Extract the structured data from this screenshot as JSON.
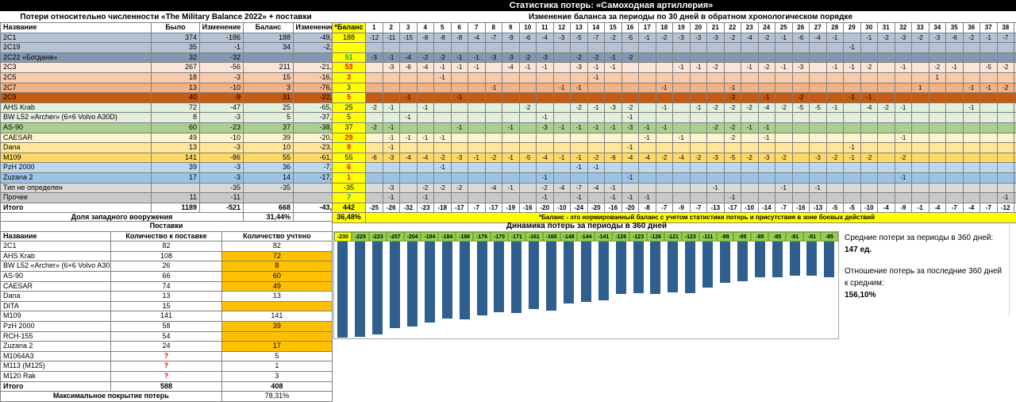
{
  "titles": {
    "main": "Статистика потерь: «Самоходная артиллерия»",
    "left": "Потери относительно численности «The Military Balance 2022» + поставки",
    "right": "Изменение баланса за периоды по 30 дней в обратном хронологическом порядке"
  },
  "colors": {
    "yellow": "#FFFF00",
    "orange_fill": "#FFC000",
    "bar_blue": "#2F5F8F",
    "label_green": "#92D050",
    "pos_green": "#00B050",
    "neg_red": "#FF0000"
  },
  "left_table": {
    "columns": [
      "Название",
      "Было",
      "Изменение",
      "Баланс",
      "Изменение %"
    ],
    "rows": [
      {
        "name": "2С1",
        "was": "374",
        "change": "-186",
        "balance": "188",
        "pct": "-49,7%",
        "color": "#B4C2D6"
      },
      {
        "name": "2С19",
        "was": "35",
        "change": "-1",
        "balance": "34",
        "pct": "-2,9%",
        "color": "#B4C2D6"
      },
      {
        "name": "2С22 «Богдана»",
        "was": "32",
        "change": "-32",
        "balance": "",
        "pct": "",
        "color": "#8497B0"
      },
      {
        "name": "2С3",
        "was": "267",
        "change": "-56",
        "balance": "211",
        "pct": "-21,0%",
        "color": "#FBE5D6"
      },
      {
        "name": "2С5",
        "was": "18",
        "change": "-3",
        "balance": "15",
        "pct": "-16,7%",
        "color": "#F8CBAD"
      },
      {
        "name": "2С7",
        "was": "13",
        "change": "-10",
        "balance": "3",
        "pct": "-76,9%",
        "color": "#F4B183"
      },
      {
        "name": "2С9",
        "was": "40",
        "change": "-9",
        "balance": "31",
        "pct": "-22,5%",
        "color": "#C55A11"
      },
      {
        "name": "AHS Krab",
        "was": "72",
        "change": "-47",
        "balance": "25",
        "pct": "-65,3%",
        "color": "#E2EFDA"
      },
      {
        "name": "BW L52 «Archer» (6×6 Volvo A30D)",
        "was": "8",
        "change": "-3",
        "balance": "5",
        "pct": "-37,5%",
        "color": "#E2EFDA"
      },
      {
        "name": "AS-90",
        "was": "60",
        "change": "-23",
        "balance": "37",
        "pct": "-38,3%",
        "color": "#A9D08E"
      },
      {
        "name": "CAESAR",
        "was": "49",
        "change": "-10",
        "balance": "39",
        "pct": "-20,4%",
        "color": "#FFF2CC"
      },
      {
        "name": "Dana",
        "was": "13",
        "change": "-3",
        "balance": "10",
        "pct": "-23,1%",
        "color": "#FFE699"
      },
      {
        "name": "M109",
        "was": "141",
        "change": "-86",
        "balance": "55",
        "pct": "-61,0%",
        "color": "#FFD966"
      },
      {
        "name": "PzH 2000",
        "was": "39",
        "change": "-3",
        "balance": "36",
        "pct": "-7,7%",
        "color": "#BDD7EE"
      },
      {
        "name": "Zuzana 2",
        "was": "17",
        "change": "-3",
        "balance": "14",
        "pct": "-17,6%",
        "color": "#9DC3E6"
      },
      {
        "name": "Тип не определен",
        "was": "",
        "change": "-35",
        "balance": "-35",
        "pct": "",
        "color": "#D9D9D9"
      },
      {
        "name": "Прочее",
        "was": "11",
        "change": "-11",
        "balance": "",
        "pct": "",
        "color": "#C9C9C9"
      }
    ],
    "total": {
      "name": "Итого",
      "was": "1189",
      "change": "-521",
      "balance": "668",
      "pct": "-43,8%"
    },
    "western_share_label": "Доля западного вооружения",
    "western_share_value": "31,44%"
  },
  "balance_column": {
    "header": "*Баланс",
    "values": [
      {
        "v": "188",
        "c": "k"
      },
      {
        "v": "",
        "c": "k"
      },
      {
        "v": "51",
        "c": "g"
      },
      {
        "v": "53",
        "c": "r"
      },
      {
        "v": "3",
        "c": "r"
      },
      {
        "v": "3",
        "c": "k"
      },
      {
        "v": "5",
        "c": "r"
      },
      {
        "v": "25",
        "c": "k"
      },
      {
        "v": "5",
        "c": "k"
      },
      {
        "v": "37",
        "c": "k"
      },
      {
        "v": "29",
        "c": "r"
      },
      {
        "v": "9",
        "c": "r"
      },
      {
        "v": "55",
        "c": "k"
      },
      {
        "v": "6",
        "c": "r"
      },
      {
        "v": "1",
        "c": "r"
      },
      {
        "v": "-35",
        "c": "k"
      },
      {
        "v": "7",
        "c": "g"
      }
    ],
    "total": "442",
    "total_pct": "36,48%"
  },
  "periods_table": {
    "columns": [
      "1",
      "2",
      "3",
      "4",
      "5",
      "6",
      "7",
      "8",
      "9",
      "10",
      "11",
      "12",
      "13",
      "14",
      "15",
      "16",
      "17",
      "18",
      "19",
      "20",
      "21",
      "22",
      "23",
      "24",
      "25",
      "26",
      "27",
      "28",
      "29",
      "30",
      "31",
      "32",
      "33",
      "34",
      "35",
      "36",
      "37",
      "38",
      "39",
      "40"
    ],
    "rows": [
      [
        "-12",
        "-11",
        "-15",
        "-8",
        "-8",
        "-8",
        "-4",
        "-7",
        "-9",
        "-6",
        "-4",
        "-3",
        "-5",
        "-7",
        "-2",
        "-5",
        "-1",
        "-2",
        "-3",
        "-3",
        "-3",
        "-2",
        "-4",
        "-2",
        "-1",
        "-6",
        "-4",
        "-1",
        "",
        "-1",
        "-2",
        "-3",
        "-2",
        "-3",
        "-6",
        "-2",
        "-1",
        "-7",
        "-9",
        "-4"
      ],
      [
        "",
        "",
        "",
        "",
        "",
        "",
        "",
        "",
        "",
        "",
        "",
        "",
        "",
        "",
        "",
        "",
        "",
        "",
        "",
        "",
        "",
        "",
        "",
        "",
        "",
        "",
        "",
        "",
        "-1",
        "",
        "",
        "",
        "",
        "",
        "",
        "",
        "",
        "",
        "",
        ""
      ],
      [
        "-3",
        "-1",
        "-4",
        "-2",
        "-2",
        "-1",
        "-1",
        "-3",
        "-3",
        "-2",
        "-3",
        "",
        "-2",
        "-2",
        "-1",
        "-2",
        "",
        "",
        "",
        "",
        "",
        "",
        "",
        "",
        "",
        "",
        "",
        "",
        "",
        "",
        "",
        "",
        "",
        "",
        "",
        "",
        "",
        "",
        "",
        ""
      ],
      [
        "",
        "-3",
        "-6",
        "-4",
        "-1",
        "-1",
        "-1",
        "",
        "-4",
        "-1",
        "-1",
        "",
        "-3",
        "-1",
        "-1",
        "",
        "",
        "",
        "-1",
        "-1",
        "-2",
        "",
        "-1",
        "-2",
        "-1",
        "-3",
        "",
        "-1",
        "-1",
        "-2",
        "",
        "-1",
        "",
        "-2",
        "-1",
        "",
        "-5",
        "-2",
        "-2",
        "-1"
      ],
      [
        "",
        "",
        "",
        "",
        "-1",
        "",
        "",
        "",
        "",
        "",
        "",
        "",
        "",
        "-1",
        "",
        "",
        "",
        "",
        "",
        "",
        "",
        "",
        "",
        "",
        "",
        "",
        "",
        "",
        "",
        "",
        "",
        "",
        "",
        "1",
        "",
        "",
        "",
        "",
        "",
        "-2"
      ],
      [
        "",
        "",
        "",
        "",
        "",
        "",
        "",
        "-1",
        "",
        "",
        "",
        "-1",
        "-1",
        "",
        "",
        "",
        "",
        "-1",
        "",
        "",
        "",
        "-1",
        "",
        "",
        "",
        "",
        "",
        "",
        "",
        "",
        "",
        "",
        "1",
        "",
        "",
        "-1",
        "-1",
        "-2",
        "-1",
        "-1"
      ],
      [
        "",
        "",
        "-1",
        "",
        "",
        "-1",
        "",
        "",
        "",
        "",
        "",
        "",
        "",
        "",
        "",
        "",
        "",
        "",
        "",
        "",
        "",
        "-2",
        "",
        "-1",
        "",
        "-2",
        "",
        "",
        "-1",
        "-1",
        "",
        "",
        "",
        "",
        "",
        "",
        "",
        "",
        "",
        ""
      ],
      [
        "-2",
        "-1",
        "",
        "-1",
        "",
        "",
        "",
        "",
        "",
        "-2",
        "",
        "",
        "-2",
        "-1",
        "-3",
        "-2",
        "",
        "-1",
        "",
        "-1",
        "-2",
        "-2",
        "-2",
        "-4",
        "-2",
        "-5",
        "-5",
        "-1",
        "",
        "-4",
        "-2",
        "-1",
        "",
        "",
        "",
        "-1",
        "",
        "",
        "",
        ""
      ],
      [
        "",
        "",
        "-1",
        "",
        "",
        "",
        "",
        "",
        "",
        "",
        "-1",
        "",
        "",
        "",
        "",
        "-1",
        "",
        "",
        "",
        "",
        "",
        "",
        "",
        "",
        "",
        "",
        "",
        "",
        "",
        "",
        "",
        "",
        "",
        "",
        "",
        "",
        "",
        "",
        "",
        ""
      ],
      [
        "-2",
        "-1",
        "",
        "",
        "",
        "-1",
        "",
        "",
        "-1",
        "",
        "-3",
        "-1",
        "-1",
        "-1",
        "-1",
        "-3",
        "-1",
        "-1",
        "",
        "",
        "-2",
        "-2",
        "-1",
        "-1",
        "",
        "",
        "",
        "",
        "",
        "",
        "",
        "",
        "",
        "",
        "",
        "",
        "",
        "",
        "",
        ""
      ],
      [
        "",
        "-1",
        "-1",
        "-1",
        "-1",
        "",
        "",
        "",
        "",
        "",
        "",
        "",
        "",
        "",
        "",
        "",
        "-1",
        "",
        "-1",
        "",
        "",
        "-2",
        "",
        "-1",
        "",
        "",
        "",
        "",
        "",
        "",
        "",
        "-1",
        "",
        "",
        "",
        "",
        "",
        "",
        "",
        ""
      ],
      [
        "",
        "-1",
        "",
        "",
        "",
        "",
        "",
        "",
        "",
        "",
        "",
        "",
        "",
        "",
        "",
        "-1",
        "",
        "",
        "",
        "",
        "",
        "",
        "",
        "",
        "",
        "",
        "",
        "",
        "-1",
        "",
        "",
        "",
        "",
        "",
        "",
        "",
        "",
        "",
        "",
        ""
      ],
      [
        "-6",
        "-3",
        "-4",
        "-4",
        "-2",
        "-3",
        "-1",
        "-2",
        "-1",
        "-5",
        "-4",
        "-1",
        "-1",
        "-2",
        "-6",
        "-4",
        "-4",
        "-2",
        "-4",
        "-2",
        "-3",
        "-5",
        "-2",
        "-3",
        "-2",
        "",
        "-3",
        "-2",
        "-1",
        "-2",
        "",
        "-2",
        "",
        "",
        "",
        "",
        "",
        "",
        "",
        ""
      ],
      [
        "",
        "",
        "",
        "",
        "-1",
        "",
        "",
        "",
        "",
        "",
        "",
        "",
        "-1",
        "-1",
        "",
        "",
        "",
        "",
        "",
        "",
        "",
        "",
        "",
        "",
        "",
        "",
        "",
        "",
        "",
        "",
        "",
        "",
        "",
        "",
        "",
        "",
        "",
        "",
        "",
        ""
      ],
      [
        "",
        "",
        "",
        "",
        "",
        "",
        "",
        "",
        "",
        "",
        "-1",
        "",
        "",
        "",
        "",
        "-1",
        "",
        "",
        "",
        "",
        "",
        "",
        "",
        "",
        "",
        "",
        "",
        "",
        "",
        "",
        "",
        "-1",
        "",
        "",
        "",
        "",
        "",
        "",
        "",
        ""
      ],
      [
        "",
        "-3",
        "",
        "-2",
        "-2",
        "-2",
        "",
        "-4",
        "-1",
        "",
        "-2",
        "-4",
        "-7",
        "-4",
        "-1",
        "",
        "",
        "",
        "",
        "",
        "-1",
        "",
        "",
        "",
        "-1",
        "",
        "-1",
        "",
        "",
        "",
        "",
        "",
        "",
        "",
        "",
        "",
        "",
        "",
        "",
        ""
      ],
      [
        "",
        "-1",
        "",
        "-1",
        "",
        "",
        "",
        "",
        "",
        "",
        "-1",
        "",
        "-1",
        "",
        "-1",
        "-1",
        "-1",
        "",
        "",
        "",
        "",
        "-1",
        "",
        "",
        "",
        "",
        "",
        "",
        "",
        "",
        "",
        "",
        "",
        "",
        "",
        "",
        "",
        "-1",
        "-1",
        "-1"
      ]
    ],
    "total_label": "Итого",
    "total_row": [
      "-25",
      "-26",
      "-32",
      "-23",
      "-18",
      "-17",
      "-7",
      "-17",
      "-19",
      "-16",
      "-20",
      "-10",
      "-24",
      "-20",
      "-16",
      "-20",
      "-8",
      "-7",
      "-9",
      "-7",
      "-13",
      "-17",
      "-10",
      "-14",
      "-7",
      "-16",
      "-13",
      "-5",
      "-5",
      "-10",
      "-4",
      "-9",
      "-1",
      "-4",
      "-7",
      "-4",
      "-7",
      "-12",
      "-13",
      "-9"
    ],
    "note": "*Баланс - это нормированный баланс с учетом статистики потерь и присутствия в зоне боевых действий"
  },
  "supplies_table": {
    "title": "Поставки",
    "columns": [
      "Название",
      "Количество к поставке",
      "Количество учтено"
    ],
    "rows": [
      {
        "name": "2С1",
        "supply": "82",
        "supply_red": false,
        "counted": "82",
        "counted_orange": false
      },
      {
        "name": "AHS Krab",
        "supply": "108",
        "supply_red": false,
        "counted": "72",
        "counted_orange": true
      },
      {
        "name": "BW L52 «Archer» (6×6 Volvo A30D)",
        "supply": "26",
        "supply_red": false,
        "counted": "8",
        "counted_orange": true
      },
      {
        "name": "AS-90",
        "supply": "66",
        "supply_red": false,
        "counted": "60",
        "counted_orange": true
      },
      {
        "name": "CAESAR",
        "supply": "74",
        "supply_red": false,
        "counted": "49",
        "counted_orange": true
      },
      {
        "name": "Dana",
        "supply": "13",
        "supply_red": false,
        "counted": "13",
        "counted_orange": false
      },
      {
        "name": "DITA",
        "supply": "15",
        "supply_red": false,
        "counted": "",
        "counted_orange": true
      },
      {
        "name": "M109",
        "supply": "141",
        "supply_red": false,
        "counted": "141",
        "counted_orange": false
      },
      {
        "name": "PzH 2000",
        "supply": "58",
        "supply_red": false,
        "counted": "39",
        "counted_orange": true
      },
      {
        "name": "RCH-155",
        "supply": "54",
        "supply_red": false,
        "counted": "",
        "counted_orange": true
      },
      {
        "name": "Zuzana 2",
        "supply": "24",
        "supply_red": false,
        "counted": "17",
        "counted_orange": true
      },
      {
        "name": "M1064A3",
        "supply": "?",
        "supply_red": true,
        "counted": "5",
        "counted_orange": false
      },
      {
        "name": "M113 (M125)",
        "supply": "?",
        "supply_red": true,
        "counted": "1",
        "counted_orange": false
      },
      {
        "name": "M120 Rak",
        "supply": "?",
        "supply_red": true,
        "counted": "3",
        "counted_orange": false
      }
    ],
    "total": {
      "label": "Итого",
      "supply": "588",
      "counted": "408"
    },
    "coverage_label": "Максимальное покрытие потерь",
    "coverage_value": "78,31%"
  },
  "chart_data": {
    "type": "bar",
    "title": "Динамика потерь за периоды в 360 дней",
    "values": [
      -230,
      -229,
      -223,
      -207,
      -204,
      -194,
      -184,
      -186,
      -176,
      -170,
      -171,
      -161,
      -165,
      -148,
      -144,
      -141,
      -126,
      -123,
      -126,
      -121,
      -123,
      -111,
      -98,
      -95,
      -85,
      -85,
      -81,
      -81,
      -85
    ],
    "ylim": [
      -230,
      0
    ],
    "bar_color": "#2F5F8F",
    "label_bg": "#92D050",
    "first_label_bg": "#FFFF00",
    "legend_position": "none",
    "grid": false
  },
  "info_panel": {
    "avg_label": "Средние потери за периоды в 360 дней:",
    "avg_value": "147  ед.",
    "ratio_label_line1": "Отношение потерь за последние 360 дней",
    "ratio_label_line2": "к средним:",
    "ratio_value": "156,10%"
  }
}
